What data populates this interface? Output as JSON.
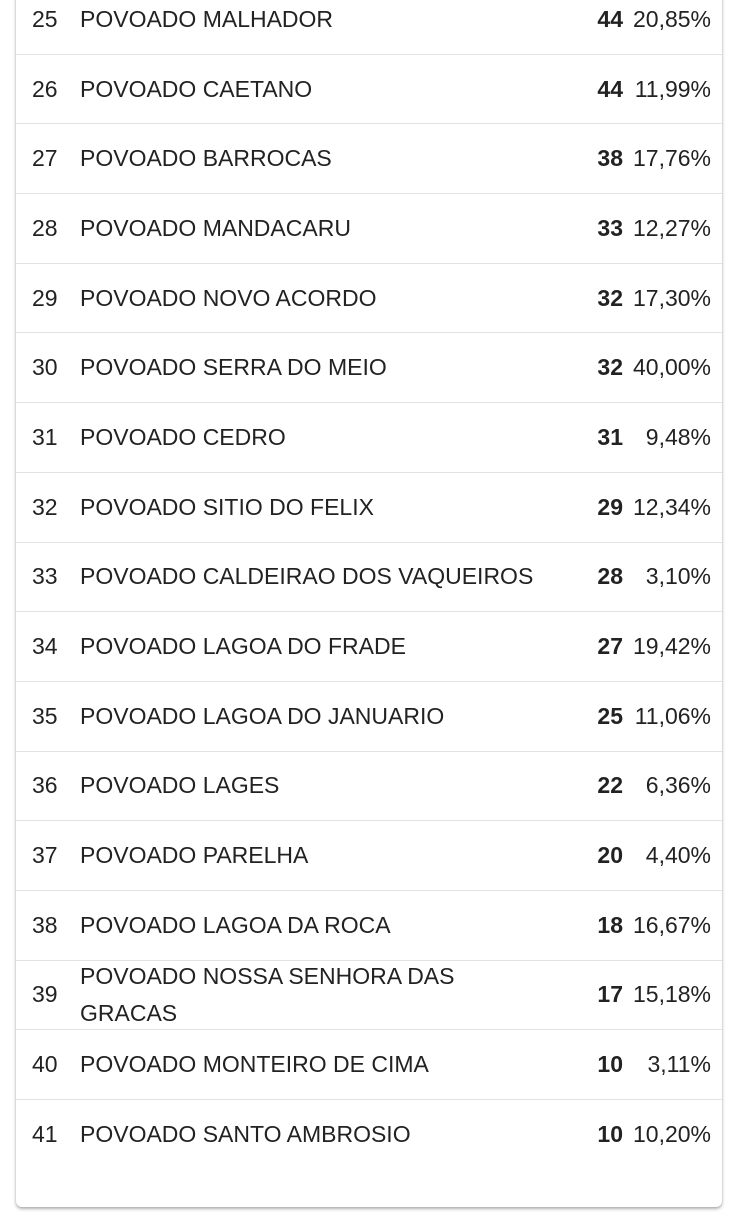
{
  "rows": [
    {
      "rank": "25",
      "name": "POVOADO MALHADOR",
      "count": "44",
      "percent": "20,85%"
    },
    {
      "rank": "26",
      "name": "POVOADO CAETANO",
      "count": "44",
      "percent": "11,99%"
    },
    {
      "rank": "27",
      "name": "POVOADO BARROCAS",
      "count": "38",
      "percent": "17,76%"
    },
    {
      "rank": "28",
      "name": "POVOADO MANDACARU",
      "count": "33",
      "percent": "12,27%"
    },
    {
      "rank": "29",
      "name": "POVOADO NOVO ACORDO",
      "count": "32",
      "percent": "17,30%"
    },
    {
      "rank": "30",
      "name": "POVOADO SERRA DO MEIO",
      "count": "32",
      "percent": "40,00%"
    },
    {
      "rank": "31",
      "name": "POVOADO CEDRO",
      "count": "31",
      "percent": "9,48%"
    },
    {
      "rank": "32",
      "name": "POVOADO SITIO DO FELIX",
      "count": "29",
      "percent": "12,34%"
    },
    {
      "rank": "33",
      "name": "POVOADO CALDEIRAO DOS VAQUEIROS",
      "count": "28",
      "percent": "3,10%"
    },
    {
      "rank": "34",
      "name": "POVOADO LAGOA DO FRADE",
      "count": "27",
      "percent": "19,42%"
    },
    {
      "rank": "35",
      "name": "POVOADO LAGOA DO JANUARIO",
      "count": "25",
      "percent": "11,06%"
    },
    {
      "rank": "36",
      "name": "POVOADO LAGES",
      "count": "22",
      "percent": "6,36%"
    },
    {
      "rank": "37",
      "name": "POVOADO PARELHA",
      "count": "20",
      "percent": "4,40%"
    },
    {
      "rank": "38",
      "name": "POVOADO LAGOA DA ROCA",
      "count": "18",
      "percent": "16,67%"
    },
    {
      "rank": "39",
      "name": "POVOADO NOSSA SENHORA DAS GRACAS",
      "count": "17",
      "percent": "15,18%"
    },
    {
      "rank": "40",
      "name": "POVOADO MONTEIRO DE CIMA",
      "count": "10",
      "percent": "3,11%"
    },
    {
      "rank": "41",
      "name": "POVOADO SANTO AMBROSIO",
      "count": "10",
      "percent": "10,20%"
    }
  ]
}
